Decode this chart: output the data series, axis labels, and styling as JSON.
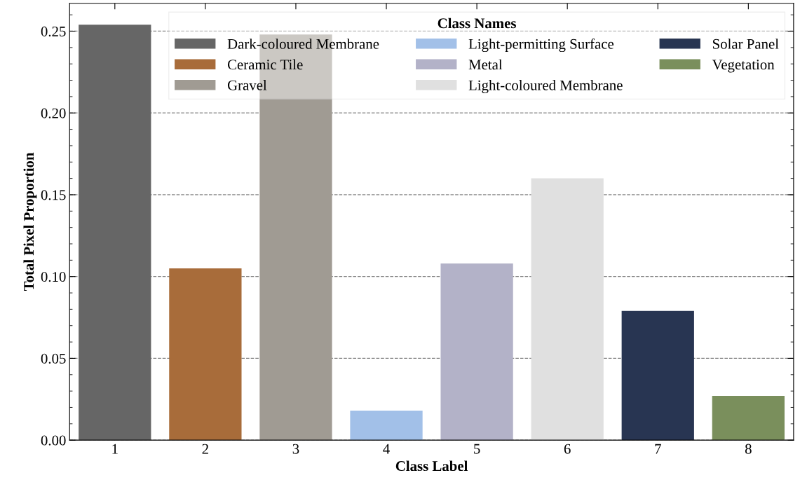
{
  "chart_data": {
    "type": "bar",
    "xlabel": "Class Label",
    "ylabel": "Total Pixel Proportion",
    "legend_title": "Class Names",
    "categories": [
      "1",
      "2",
      "3",
      "4",
      "5",
      "6",
      "7",
      "8"
    ],
    "series": [
      {
        "name": "Dark-coloured Membrane",
        "color": "#666666",
        "values": [
          0.254,
          null,
          null,
          null,
          null,
          null,
          null,
          null
        ]
      },
      {
        "name": "Ceramic Tile",
        "color": "#a86c3a",
        "values": [
          null,
          0.105,
          null,
          null,
          null,
          null,
          null,
          null
        ]
      },
      {
        "name": "Gravel",
        "color": "#a09b93",
        "values": [
          null,
          null,
          0.248,
          null,
          null,
          null,
          null,
          null
        ]
      },
      {
        "name": "Light-permitting Surface",
        "color": "#a2c0e8",
        "values": [
          null,
          null,
          null,
          0.018,
          null,
          null,
          null,
          null
        ]
      },
      {
        "name": "Metal",
        "color": "#b3b2c8",
        "values": [
          null,
          null,
          null,
          null,
          0.108,
          null,
          null,
          null
        ]
      },
      {
        "name": "Light-coloured Membrane",
        "color": "#e0e0e0",
        "values": [
          null,
          null,
          null,
          null,
          null,
          0.16,
          null,
          null
        ]
      },
      {
        "name": "Solar Panel",
        "color": "#283552",
        "values": [
          null,
          null,
          null,
          null,
          null,
          null,
          0.079,
          null
        ]
      },
      {
        "name": "Vegetation",
        "color": "#7a8f5c",
        "values": [
          null,
          null,
          null,
          null,
          null,
          null,
          null,
          0.027
        ]
      }
    ],
    "ylim": [
      0,
      0.267
    ],
    "yticks": [
      {
        "value": 0,
        "label": "0.00"
      },
      {
        "value": 0.05,
        "label": "0.05"
      },
      {
        "value": 0.1,
        "label": "0.10"
      },
      {
        "value": 0.15,
        "label": "0.15"
      },
      {
        "value": 0.2,
        "label": "0.20"
      },
      {
        "value": 0.25,
        "label": "0.25"
      }
    ],
    "grid": "y",
    "legend": "top right"
  }
}
